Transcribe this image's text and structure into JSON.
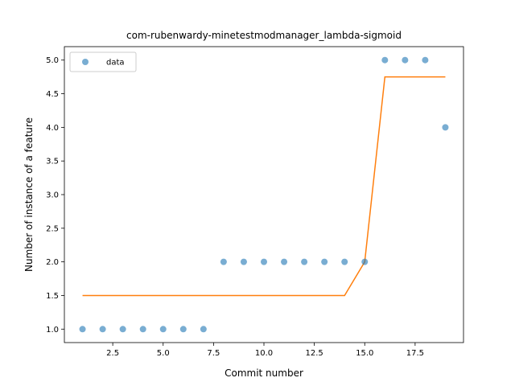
{
  "chart_data": {
    "type": "scatter",
    "title": "com-rubenwardy-minetestmodmanager_lambda-sigmoid",
    "xlabel": "Commit number",
    "ylabel": "Number of instance of a feature",
    "xlim": [
      0.1,
      19.9
    ],
    "ylim": [
      0.8,
      5.2
    ],
    "xticks": [
      2.5,
      5.0,
      7.5,
      10.0,
      12.5,
      15.0,
      17.5
    ],
    "xtick_labels": [
      "2.5",
      "5.0",
      "7.5",
      "10.0",
      "12.5",
      "15.0",
      "17.5"
    ],
    "yticks": [
      1.0,
      1.5,
      2.0,
      2.5,
      3.0,
      3.5,
      4.0,
      4.5,
      5.0
    ],
    "ytick_labels": [
      "1.0",
      "1.5",
      "2.0",
      "2.5",
      "3.0",
      "3.5",
      "4.0",
      "4.5",
      "5.0"
    ],
    "grid": false,
    "legend_position": "top-left",
    "series": [
      {
        "name": "data",
        "kind": "scatter",
        "color": "#1f77b4",
        "x": [
          1,
          2,
          3,
          4,
          5,
          6,
          7,
          8,
          9,
          10,
          11,
          12,
          13,
          14,
          15,
          16,
          17,
          18,
          19
        ],
        "y": [
          1,
          1,
          1,
          1,
          1,
          1,
          1,
          2,
          2,
          2,
          2,
          2,
          2,
          2,
          2,
          5,
          5,
          5,
          4
        ]
      },
      {
        "kind": "line",
        "color": "#ff7f0e",
        "x": [
          1,
          2,
          3,
          4,
          5,
          6,
          7,
          8,
          9,
          10,
          11,
          12,
          13,
          14,
          15,
          16,
          17,
          18,
          19
        ],
        "y": [
          1.5,
          1.5,
          1.5,
          1.5,
          1.5,
          1.5,
          1.5,
          1.5,
          1.5,
          1.5,
          1.5,
          1.5,
          1.5,
          1.5,
          2.0,
          4.75,
          4.75,
          4.75,
          4.75
        ]
      }
    ]
  }
}
